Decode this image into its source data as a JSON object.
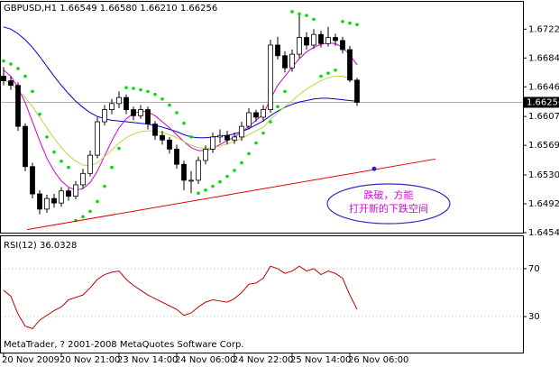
{
  "chart_data": [
    {
      "type": "candlestick",
      "title": "GBPUSD,H1 1.66549 1.66580 1.66210 1.66256",
      "categories": [
        "20 Nov 2009",
        null,
        null,
        null,
        null,
        null,
        null,
        null,
        "20 Nov 21:00",
        null,
        null,
        null,
        null,
        null,
        null,
        null,
        "23 Nov 14:00",
        null,
        null,
        null,
        null,
        null,
        null,
        null,
        "24 Nov 06:00",
        null,
        null,
        null,
        null,
        null,
        null,
        null,
        "24 Nov 22:00",
        null,
        null,
        null,
        null,
        null,
        null,
        null,
        "25 Nov 14:00",
        null,
        null,
        null,
        null,
        null,
        null,
        null,
        "26 Nov 06:00",
        null
      ],
      "opens": [
        1.666,
        1.6654,
        1.6648,
        1.6594,
        1.6541,
        1.6505,
        1.6485,
        1.6499,
        1.6493,
        1.6509,
        1.6502,
        1.6517,
        1.6532,
        1.6556,
        1.66,
        1.6616,
        1.6624,
        1.6632,
        1.6616,
        1.6608,
        1.6616,
        1.6597,
        1.6582,
        1.6576,
        1.6564,
        1.6544,
        1.6523,
        1.6523,
        1.6549,
        1.6564,
        1.658,
        1.6582,
        1.6576,
        1.658,
        1.6594,
        1.6612,
        1.6606,
        1.6616,
        1.6701,
        1.6687,
        1.6671,
        1.6689,
        1.6711,
        1.6701,
        1.6715,
        1.6703,
        1.6711,
        1.6707,
        1.6695,
        1.66549
      ],
      "highs": [
        1.6672,
        1.666,
        1.6652,
        1.6598,
        1.6546,
        1.651,
        1.6504,
        1.6505,
        1.6514,
        1.6513,
        1.6522,
        1.6538,
        1.6562,
        1.6606,
        1.6622,
        1.663,
        1.664,
        1.6636,
        1.662,
        1.6622,
        1.662,
        1.6601,
        1.6588,
        1.658,
        1.657,
        1.6549,
        1.6535,
        1.6554,
        1.6569,
        1.6586,
        1.659,
        1.6588,
        1.6586,
        1.66,
        1.6618,
        1.6616,
        1.6622,
        1.6708,
        1.6712,
        1.6693,
        1.6695,
        1.674,
        1.6718,
        1.6722,
        1.672,
        1.6725,
        1.6716,
        1.6712,
        1.67,
        1.6658
      ],
      "lows": [
        1.6648,
        1.6642,
        1.6588,
        1.6535,
        1.6499,
        1.6478,
        1.648,
        1.6487,
        1.6488,
        1.6496,
        1.6498,
        1.6512,
        1.6528,
        1.6552,
        1.6595,
        1.661,
        1.6618,
        1.661,
        1.6602,
        1.6604,
        1.659,
        1.6576,
        1.657,
        1.6558,
        1.6538,
        1.651,
        1.6506,
        1.6518,
        1.6544,
        1.6559,
        1.6572,
        1.657,
        1.6571,
        1.6575,
        1.659,
        1.66,
        1.66,
        1.6612,
        1.6682,
        1.6665,
        1.6666,
        1.6684,
        1.6695,
        1.6696,
        1.6698,
        1.6699,
        1.67,
        1.669,
        1.6652,
        1.6621
      ],
      "closes": [
        1.6654,
        1.6648,
        1.6594,
        1.6541,
        1.6505,
        1.6485,
        1.6499,
        1.6493,
        1.6509,
        1.6502,
        1.6517,
        1.6532,
        1.6556,
        1.66,
        1.6616,
        1.6624,
        1.6632,
        1.6616,
        1.6608,
        1.6616,
        1.6597,
        1.6582,
        1.6576,
        1.6564,
        1.6544,
        1.6523,
        1.6523,
        1.6549,
        1.6564,
        1.658,
        1.6582,
        1.6576,
        1.658,
        1.6594,
        1.6612,
        1.6606,
        1.6616,
        1.6701,
        1.6687,
        1.6671,
        1.6689,
        1.6711,
        1.6701,
        1.6715,
        1.6703,
        1.6711,
        1.6707,
        1.6695,
        1.66549,
        1.66256
      ],
      "series": [
        {
          "color": "#0000c8",
          "values": [
            1.6725,
            1.6722,
            1.6716,
            1.6708,
            1.6698,
            1.6686,
            1.6673,
            1.666,
            1.6648,
            1.6637,
            1.6627,
            1.6619,
            1.6612,
            1.6607,
            1.6604,
            1.6602,
            1.6601,
            1.66,
            1.6599,
            1.6598,
            1.6597,
            1.6595,
            1.6593,
            1.659,
            1.6587,
            1.6583,
            1.658,
            1.6579,
            1.6579,
            1.658,
            1.6581,
            1.6582,
            1.6584,
            1.6587,
            1.6591,
            1.6596,
            1.6601,
            1.6608,
            1.6614,
            1.6619,
            1.6623,
            1.6626,
            1.6628,
            1.663,
            1.6631,
            1.6631,
            1.663,
            1.6629,
            1.6628,
            1.6627
          ]
        },
        {
          "color": "#d000d0",
          "values": [
            1.6668,
            1.666,
            1.6645,
            1.6625,
            1.66,
            1.6575,
            1.6552,
            1.6535,
            1.6522,
            1.6514,
            1.651,
            1.6512,
            1.652,
            1.6535,
            1.6555,
            1.6575,
            1.6592,
            1.6604,
            1.6611,
            1.6614,
            1.6613,
            1.6608,
            1.66,
            1.6592,
            1.6583,
            1.6574,
            1.6566,
            1.6562,
            1.6562,
            1.6565,
            1.657,
            1.6575,
            1.658,
            1.6586,
            1.6594,
            1.6602,
            1.661,
            1.663,
            1.6648,
            1.666,
            1.6672,
            1.6683,
            1.6692,
            1.6698,
            1.6702,
            1.6704,
            1.6703,
            1.6698,
            1.6688,
            1.6675
          ]
        },
        {
          "color": "#b8d840",
          "values": [
            1.6655,
            1.665,
            1.6642,
            1.6632,
            1.662,
            1.6606,
            1.6592,
            1.6578,
            1.6566,
            1.6556,
            1.6548,
            1.6543,
            1.6542,
            1.6546,
            1.6554,
            1.6563,
            1.6572,
            1.6579,
            1.6584,
            1.6587,
            1.6588,
            1.6588,
            1.6586,
            1.6583,
            1.6579,
            1.6574,
            1.6569,
            1.6566,
            1.6565,
            1.6566,
            1.6568,
            1.6571,
            1.6574,
            1.6578,
            1.6583,
            1.6588,
            1.6593,
            1.6603,
            1.6612,
            1.662,
            1.6628,
            1.6636,
            1.6643,
            1.6649,
            1.6654,
            1.6658,
            1.666,
            1.666,
            1.6657,
            1.6652
          ]
        }
      ],
      "sar": [
        1.668,
        1.6676,
        1.667,
        1.666,
        1.664,
        1.661,
        1.658,
        1.656,
        1.6548,
        1.654,
        1.647,
        1.6475,
        1.6482,
        1.6495,
        1.6515,
        1.654,
        1.6565,
        1.6645,
        1.6644,
        1.6642,
        1.664,
        1.6636,
        1.663,
        1.6622,
        1.6612,
        1.6598,
        1.658,
        1.6506,
        1.651,
        1.6515,
        1.6521,
        1.6528,
        1.6536,
        1.6546,
        1.6558,
        1.6572,
        1.6585,
        1.66,
        1.662,
        1.664,
        1.6745,
        1.6742,
        1.674,
        1.6735,
        1.666,
        1.6664,
        1.6668,
        1.6732,
        1.673,
        1.6728
      ],
      "sar_color": "#00dd00",
      "ylim": [
        1.6454,
        1.6758
      ],
      "yticks": [
        {
          "value": 1.6722,
          "label": "1.67220"
        },
        {
          "value": 1.6684,
          "label": "1.66840"
        },
        {
          "value": 1.6646,
          "label": "1.66460"
        },
        {
          "value": 1.6607,
          "label": "1.66070"
        },
        {
          "value": 1.6569,
          "label": "1.65690"
        },
        {
          "value": 1.653,
          "label": "1.65300"
        },
        {
          "value": 1.6492,
          "label": "1.64920"
        },
        {
          "value": 1.6454,
          "label": "1.64540"
        }
      ],
      "last_price": {
        "value": 1.66256,
        "label": "1.66256"
      },
      "trendline": {
        "start": 1.6458,
        "end": 1.6551,
        "color": "#e00000"
      },
      "marker": {
        "value": 1.6538,
        "color": "#2020e0"
      },
      "annotation": [
        "跌破，方能",
        "打开新的下跌空间"
      ],
      "footer": "MetaTrader, ? 2001-2008 MetaQuotes Software Corp."
    },
    {
      "type": "line",
      "title": "RSI(12) 36.0328",
      "color": "#c00000",
      "values": [
        52,
        47,
        32,
        22,
        20,
        27,
        31,
        35,
        38,
        44,
        46,
        48,
        54,
        61,
        65,
        67,
        68,
        61,
        56,
        52,
        48,
        45,
        42,
        39,
        36,
        31,
        33,
        38,
        42,
        44,
        43,
        42,
        45,
        50,
        57,
        58,
        62,
        72,
        70,
        66,
        68,
        72,
        68,
        70,
        65,
        68,
        66,
        62,
        48,
        36.0328
      ],
      "ylim": [
        0,
        100
      ],
      "yticks": [
        70,
        30
      ]
    }
  ]
}
